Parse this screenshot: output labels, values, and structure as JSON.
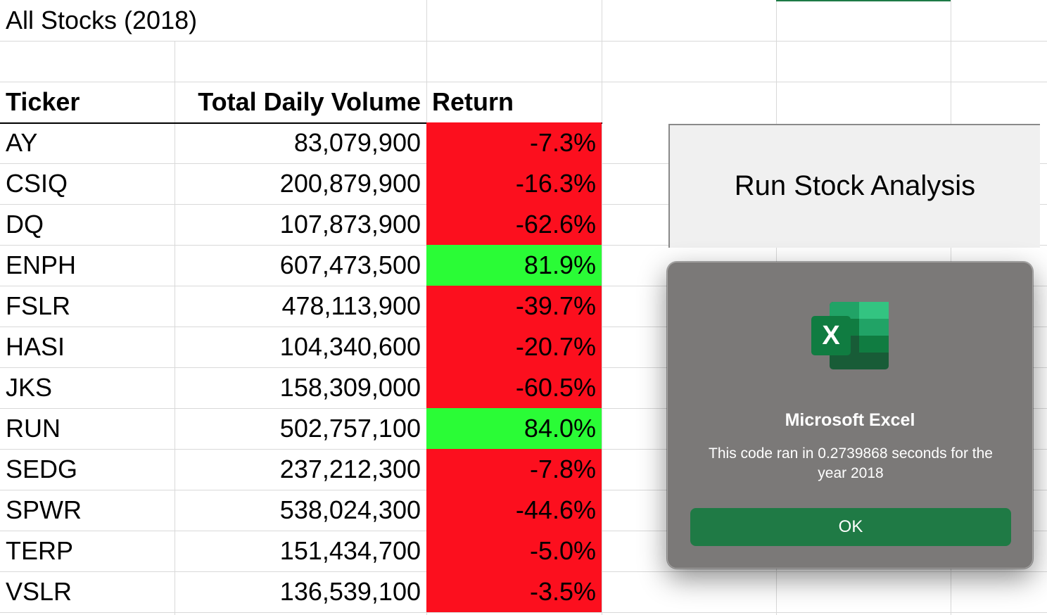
{
  "sheet": {
    "title": "All Stocks (2018)",
    "headers": {
      "ticker": "Ticker",
      "volume": "Total Daily Volume",
      "return": "Return"
    },
    "rows": [
      {
        "ticker": "AY",
        "volume": "83,079,900",
        "return": "-7.3%",
        "status": "negative"
      },
      {
        "ticker": "CSIQ",
        "volume": "200,879,900",
        "return": "-16.3%",
        "status": "negative"
      },
      {
        "ticker": "DQ",
        "volume": "107,873,900",
        "return": "-62.6%",
        "status": "negative"
      },
      {
        "ticker": "ENPH",
        "volume": "607,473,500",
        "return": "81.9%",
        "status": "positive"
      },
      {
        "ticker": "FSLR",
        "volume": "478,113,900",
        "return": "-39.7%",
        "status": "negative"
      },
      {
        "ticker": "HASI",
        "volume": "104,340,600",
        "return": "-20.7%",
        "status": "negative"
      },
      {
        "ticker": "JKS",
        "volume": "158,309,000",
        "return": "-60.5%",
        "status": "negative"
      },
      {
        "ticker": "RUN",
        "volume": "502,757,100",
        "return": "84.0%",
        "status": "positive"
      },
      {
        "ticker": "SEDG",
        "volume": "237,212,300",
        "return": "-7.8%",
        "status": "negative"
      },
      {
        "ticker": "SPWR",
        "volume": "538,024,300",
        "return": "-44.6%",
        "status": "negative"
      },
      {
        "ticker": "TERP",
        "volume": "151,434,700",
        "return": "-5.0%",
        "status": "negative"
      },
      {
        "ticker": "VSLR",
        "volume": "136,539,100",
        "return": "-3.5%",
        "status": "negative"
      }
    ]
  },
  "colors": {
    "negative": "#fc0f1e",
    "positive": "#2afc36",
    "ok_button": "#1f7a45",
    "dialog_bg": "#7b7978"
  },
  "run_button": {
    "label": "Run Stock Analysis"
  },
  "dialog": {
    "icon": "microsoft-excel-icon",
    "title": "Microsoft Excel",
    "message": "This code ran in 0.2739868 seconds for the year 2018",
    "ok_label": "OK"
  }
}
